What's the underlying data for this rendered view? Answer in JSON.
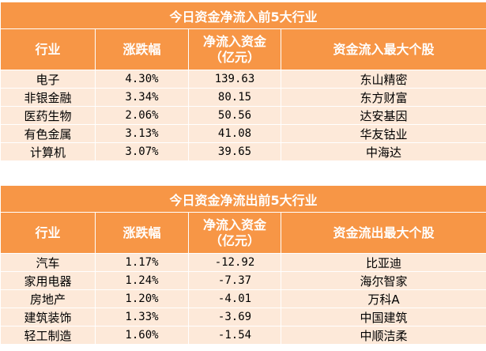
{
  "inflow": {
    "title": "今日资金净流入前5大行业",
    "headers": [
      "行业",
      "涨跌幅",
      "净流入资金\n（亿元）",
      "资金流入最大个股"
    ],
    "rows": [
      [
        "电子",
        "4.30%",
        "139.63",
        "东山精密"
      ],
      [
        "非银金融",
        "3.34%",
        "80.15",
        "东方财富"
      ],
      [
        "医药生物",
        "2.06%",
        "50.56",
        "达安基因"
      ],
      [
        "有色金属",
        "3.13%",
        "41.08",
        "华友钴业"
      ],
      [
        "计算机",
        "3.07%",
        "39.65",
        "中海达"
      ]
    ]
  },
  "outflow": {
    "title": "今日资金净流出前5大行业",
    "headers": [
      "行业",
      "涨跌幅",
      "净流入资金\n（亿元）",
      "资金流出最大个股"
    ],
    "rows": [
      [
        "汽车",
        "1.17%",
        "-12.92",
        "比亚迪"
      ],
      [
        "家用电器",
        "1.24%",
        "-7.37",
        "海尔智家"
      ],
      [
        "房地产",
        "1.20%",
        "-4.01",
        "万科A"
      ],
      [
        "建筑装饰",
        "1.33%",
        "-3.69",
        "中国建筑"
      ],
      [
        "轻工制造",
        "1.60%",
        "-1.54",
        "中顺洁柔"
      ]
    ]
  },
  "colors": {
    "header": "#f79646",
    "row": "#fde9d9"
  }
}
